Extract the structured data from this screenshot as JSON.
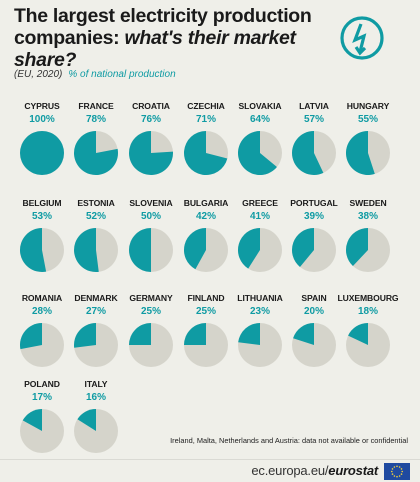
{
  "header": {
    "title_bold": "The largest electricity production",
    "title_line2_bold": "companies:",
    "title_line2_italic": "what's their market share?",
    "subtitle_scope": "(EU, 2020)",
    "subtitle_unit": "% of national production",
    "logo_icon": "lightning-bolt-icon"
  },
  "chart_data": {
    "type": "pie",
    "unit": "% of national production",
    "categories": [
      "CYPRUS",
      "FRANCE",
      "CROATIA",
      "CZECHIA",
      "SLOVAKIA",
      "LATVIA",
      "HUNGARY",
      "BELGIUM",
      "ESTONIA",
      "SLOVENIA",
      "BULGARIA",
      "GREECE",
      "PORTUGAL",
      "SWEDEN",
      "ROMANIA",
      "DENMARK",
      "GERMANY",
      "FINLAND",
      "LITHUANIA",
      "SPAIN",
      "LUXEMBOURG",
      "POLAND",
      "ITALY"
    ],
    "values": [
      100,
      78,
      76,
      71,
      64,
      57,
      55,
      53,
      52,
      50,
      42,
      41,
      39,
      38,
      28,
      27,
      25,
      25,
      23,
      20,
      18,
      17,
      16
    ],
    "value_labels": [
      "100%",
      "78%",
      "76%",
      "71%",
      "64%",
      "57%",
      "55%",
      "53%",
      "52%",
      "50%",
      "42%",
      "41%",
      "39%",
      "38%",
      "28%",
      "27%",
      "25%",
      "25%",
      "23%",
      "20%",
      "18%",
      "17%",
      "16%"
    ],
    "colors": {
      "share": "#0f9ba3",
      "remainder": "#d5d4cb",
      "accent_text": "#0f9ba3"
    },
    "legend": "none"
  },
  "note": "Ireland, Malta, Netherlands and Austria: data not available or confidential",
  "footer": {
    "source_prefix": "ec.europa.eu/",
    "source_brand": "eurostat",
    "flag_icon": "eu-flag-icon"
  }
}
